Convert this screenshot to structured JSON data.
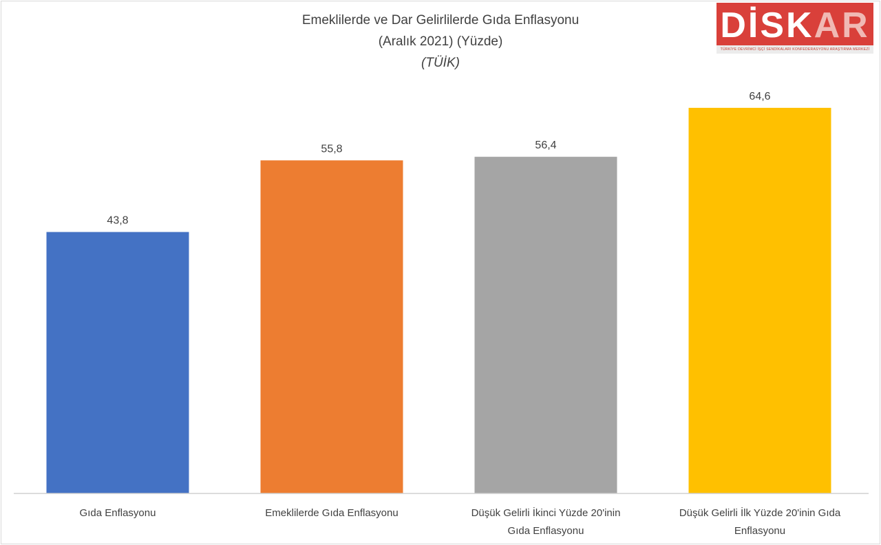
{
  "chart_data": {
    "type": "bar",
    "title": "Emeklilerde ve Dar Gelirlilerde Gıda Enflasyonu",
    "subtitle": "(Aralık 2021) (Yüzde)",
    "source": "(TÜİK)",
    "categories": [
      "Gıda Enflasyonu",
      "Emeklilerde Gıda Enflasyonu",
      "Düşük Gelirli İkinci Yüzde 20'inin Gıda Enflasyonu",
      "Düşük Gelirli İlk Yüzde 20'inin Gıda Enflasyonu"
    ],
    "category_lines": [
      [
        "Gıda Enflasyonu"
      ],
      [
        "Emeklilerde Gıda Enflasyonu"
      ],
      [
        "Düşük Gelirli İkinci Yüzde 20'inin",
        "Gıda Enflasyonu"
      ],
      [
        "Düşük Gelirli İlk Yüzde 20'inin Gıda",
        "Enflasyonu"
      ]
    ],
    "values": [
      43.8,
      55.8,
      56.4,
      64.6
    ],
    "value_labels": [
      "43,8",
      "55,8",
      "56,4",
      "64,6"
    ],
    "colors": [
      "#4472c4",
      "#ed7d31",
      "#a5a5a5",
      "#ffc000"
    ],
    "ylim": [
      0,
      70
    ],
    "grid": false,
    "legend": "none"
  },
  "logo": {
    "text_main": "DİSK",
    "text_accent": "AR",
    "tagline": "TÜRKİYE DEVRİMCİ İŞÇİ SENDİKALARI KONFEDERASYONU ARAŞTIRMA MERKEZİ"
  }
}
